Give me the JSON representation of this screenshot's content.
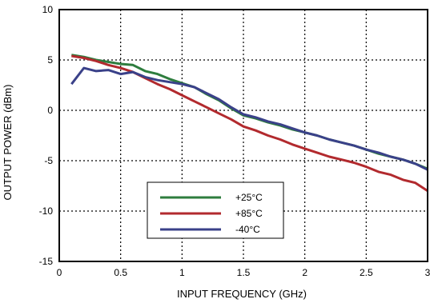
{
  "chart_data": {
    "type": "line",
    "xlabel": "INPUT FREQUENCY (GHz)",
    "ylabel": "OUTPUT POWER (dBm)",
    "xlim": [
      0,
      3
    ],
    "ylim": [
      -15,
      10
    ],
    "xticks": [
      0,
      0.5,
      1,
      1.5,
      2,
      2.5,
      3
    ],
    "xtick_labels": [
      "0",
      "0.5",
      "1",
      "1.5",
      "2",
      "2.5",
      "3"
    ],
    "yticks": [
      -15,
      -10,
      -5,
      0,
      5,
      10
    ],
    "ytick_labels": [
      "-15",
      "-10",
      "-5",
      "0",
      "5",
      "10"
    ],
    "grid": "dotted",
    "legend_position": "lower-center",
    "series": [
      {
        "name": "+25°C",
        "color": "#2e7d3e",
        "x": [
          0.1,
          0.2,
          0.3,
          0.4,
          0.5,
          0.6,
          0.7,
          0.8,
          0.9,
          1.0,
          1.1,
          1.2,
          1.3,
          1.4,
          1.5,
          1.6,
          1.7,
          1.8,
          1.9,
          2.0,
          2.1,
          2.2,
          2.3,
          2.4,
          2.5,
          2.6,
          2.7,
          2.8,
          2.9,
          3.0
        ],
        "y": [
          5.5,
          5.3,
          5.0,
          4.8,
          4.6,
          4.5,
          3.9,
          3.6,
          3.1,
          2.7,
          2.3,
          1.6,
          1.0,
          0.2,
          -0.5,
          -0.8,
          -1.2,
          -1.5,
          -1.9,
          -2.2,
          -2.5,
          -2.9,
          -3.2,
          -3.5,
          -3.9,
          -4.3,
          -4.6,
          -4.9,
          -5.3,
          -5.8
        ]
      },
      {
        "name": "+85°C",
        "color": "#b22a2e",
        "x": [
          0.1,
          0.2,
          0.3,
          0.4,
          0.5,
          0.6,
          0.7,
          0.8,
          0.9,
          1.0,
          1.1,
          1.2,
          1.3,
          1.4,
          1.5,
          1.6,
          1.7,
          1.8,
          1.9,
          2.0,
          2.1,
          2.2,
          2.3,
          2.4,
          2.5,
          2.6,
          2.7,
          2.8,
          2.9,
          3.0
        ],
        "y": [
          5.4,
          5.2,
          4.9,
          4.5,
          4.2,
          3.8,
          3.2,
          2.6,
          2.1,
          1.5,
          0.9,
          0.3,
          -0.3,
          -0.9,
          -1.6,
          -2.0,
          -2.5,
          -2.9,
          -3.4,
          -3.8,
          -4.2,
          -4.6,
          -4.9,
          -5.2,
          -5.6,
          -6.1,
          -6.4,
          -6.9,
          -7.2,
          -8.0
        ]
      },
      {
        "name": "-40°C",
        "color": "#3a4189",
        "x": [
          0.1,
          0.2,
          0.3,
          0.4,
          0.5,
          0.6,
          0.7,
          0.8,
          0.9,
          1.0,
          1.1,
          1.2,
          1.3,
          1.4,
          1.5,
          1.6,
          1.7,
          1.8,
          1.9,
          2.0,
          2.1,
          2.2,
          2.3,
          2.4,
          2.5,
          2.6,
          2.7,
          2.8,
          2.9,
          3.0
        ],
        "y": [
          2.6,
          4.2,
          3.9,
          4.0,
          3.6,
          3.8,
          3.3,
          3.0,
          2.8,
          2.6,
          2.3,
          1.7,
          1.1,
          0.3,
          -0.4,
          -0.7,
          -1.1,
          -1.4,
          -1.8,
          -2.2,
          -2.5,
          -2.9,
          -3.2,
          -3.5,
          -3.9,
          -4.2,
          -4.6,
          -4.9,
          -5.3,
          -5.9
        ]
      }
    ]
  }
}
